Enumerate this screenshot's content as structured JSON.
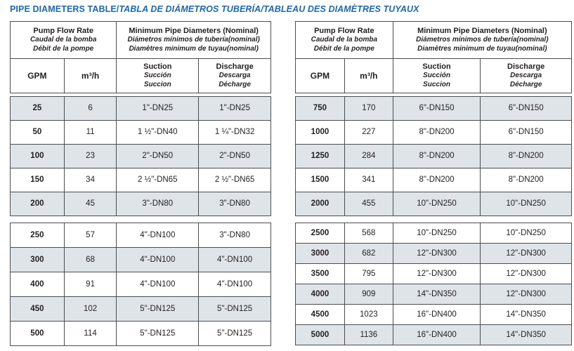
{
  "colors": {
    "accent_blue": "#1b69b1",
    "row_shade": "#dee4e8",
    "table_border": "#4a4e52",
    "text": "#231f20"
  },
  "title": {
    "plain": "PIPE DIAMETERS TABLE/",
    "italic": "TABLA DE DIÁMETROS TUBERÍA/TABLEAU DES DIAMÈTRES TUYAUX"
  },
  "header": {
    "flow": [
      "Pump Flow Rate",
      "Caudal de la bomba",
      "Débit de la pompe"
    ],
    "diameters": [
      "Minimum Pipe Diameters (Nominal)",
      "Diámetros mínimos de tubería(nominal)",
      "Diamètres minimum de tuyau(nominal)"
    ],
    "gpm": "GPM",
    "m3h": "m³/h",
    "suction": [
      "Suction",
      "Succión",
      "Succion"
    ],
    "discharge": [
      "Discharge",
      "Descarga",
      "Décharge"
    ]
  },
  "tables": {
    "left": {
      "blocks": [
        [
          [
            "25",
            "6",
            "1\"-DN25",
            "1\"-DN25"
          ],
          [
            "50",
            "11",
            "1 ½\"-DN40",
            "1 ¼\"-DN32"
          ],
          [
            "100",
            "23",
            "2\"-DN50",
            "2\"-DN50"
          ],
          [
            "150",
            "34",
            "2 ½\"-DN65",
            "2 ½\"-DN65"
          ],
          [
            "200",
            "45",
            "3\"-DN80",
            "3\"-DN80"
          ]
        ],
        [
          [
            "250",
            "57",
            "4\"-DN100",
            "3\"-DN80"
          ],
          [
            "300",
            "68",
            "4\"-DN100",
            "4\"-DN100"
          ],
          [
            "400",
            "91",
            "4\"-DN100",
            "4\"-DN100"
          ],
          [
            "450",
            "102",
            "5\"-DN125",
            "5\"-DN125"
          ],
          [
            "500",
            "114",
            "5\"-DN125",
            "5\"-DN125"
          ]
        ]
      ]
    },
    "right": {
      "blocks": [
        [
          [
            "750",
            "170",
            "6\"-DN150",
            "6\"-DN150"
          ],
          [
            "1000",
            "227",
            "8\"-DN200",
            "6\"-DN150"
          ],
          [
            "1250",
            "284",
            "8\"-DN200",
            "8\"-DN200"
          ],
          [
            "1500",
            "341",
            "8\"-DN200",
            "8\"-DN200"
          ],
          [
            "2000",
            "455",
            "10\"-DN250",
            "10\"-DN250"
          ]
        ],
        [
          [
            "2500",
            "568",
            "10\"-DN250",
            "10\"-DN250"
          ],
          [
            "3000",
            "682",
            "12\"-DN300",
            "12\"-DN300"
          ],
          [
            "3500",
            "795",
            "12\"-DN300",
            "12\"-DN300"
          ],
          [
            "4000",
            "909",
            "14\"-DN350",
            "12\"-DN300"
          ],
          [
            "4500",
            "1023",
            "16\"-DN400",
            "14\"-DN350"
          ],
          [
            "5000",
            "1136",
            "16\"-DN400",
            "14\"-DN350"
          ]
        ]
      ]
    }
  }
}
